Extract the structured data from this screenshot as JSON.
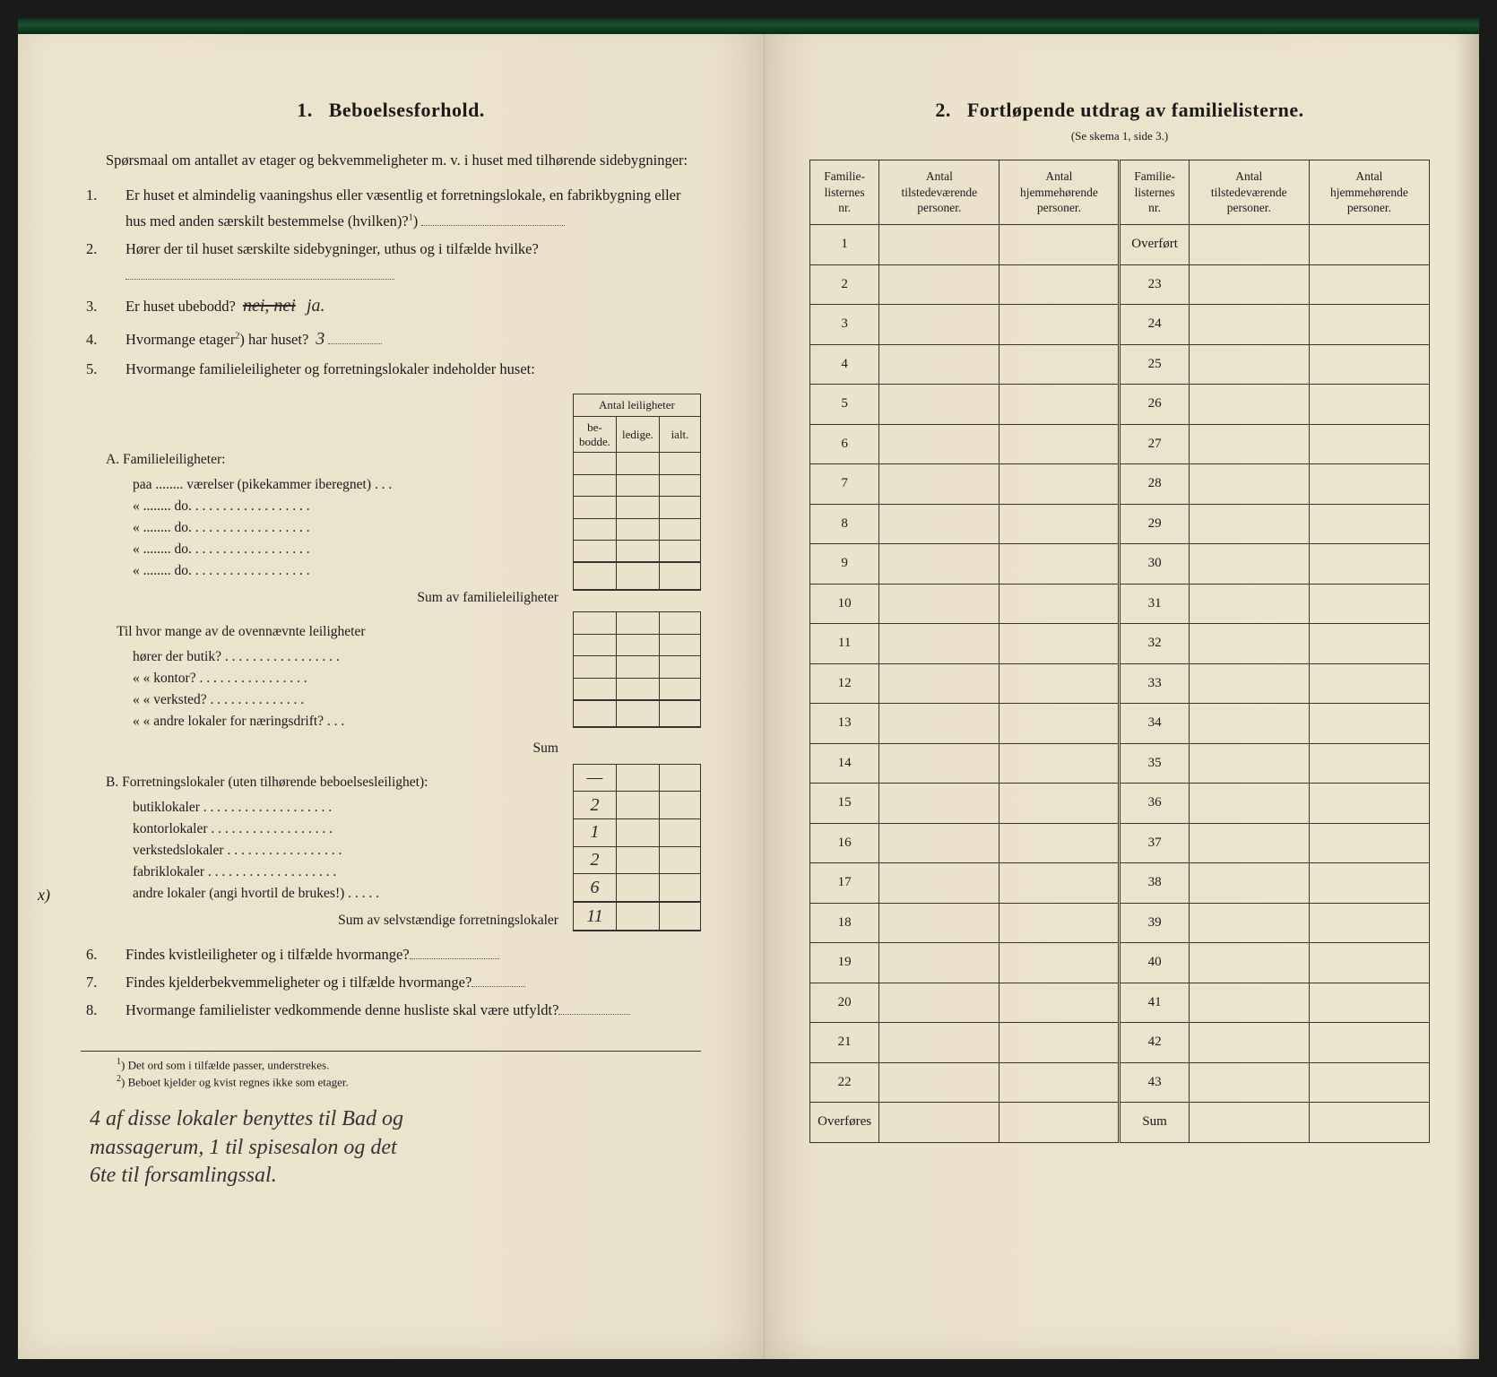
{
  "left": {
    "section_number": "1.",
    "section_title": "Beboelsesforhold.",
    "intro": "Spørsmaal om antallet av etager og bekvemmeligheter m. v. i huset med tilhørende sidebygninger:",
    "q1_num": "1.",
    "q1": "Er huset et almindelig vaaningshus eller væsentlig et forretningslokale, en fabrikbygning eller hus med anden særskilt bestemmelse (hvilken)?",
    "q1_sup": "1",
    "q2_num": "2.",
    "q2": "Hører der til huset særskilte sidebygninger, uthus og i tilfælde hvilke?",
    "q3_num": "3.",
    "q3": "Er huset ubebodd?",
    "q3_hand_struck": "nei, nei",
    "q3_hand": "ja.",
    "q4_num": "4.",
    "q4a": "Hvormange etager",
    "q4_sup": "2",
    "q4b": ") har huset?",
    "q4_hand": "3",
    "q5_num": "5.",
    "q5": "Hvormange familieleiligheter og forretningslokaler indeholder huset:",
    "apt_header_top": "Antal leiligheter",
    "apt_h1": "be-\nbodde.",
    "apt_h2": "ledige.",
    "apt_h3": "ialt.",
    "secA": "A. Familieleiligheter:",
    "secA_l1": "paa ........ værelser (pikekammer iberegnet) . . .",
    "secA_l2": "«   ........   do.   . . . . . . . . . . . . . . . . .",
    "secA_l3": "«   ........   do.   . . . . . . . . . . . . . . . . .",
    "secA_l4": "«   ........   do.   . . . . . . . . . . . . . . . . .",
    "secA_l5": "«   ........   do.   . . . . . . . . . . . . . . . . .",
    "secA_sum": "Sum av familieleiligheter",
    "mid1": "Til hvor mange av de ovennævnte leiligheter",
    "mid2": "hører der butik? . . . . . . . . . . . . . . . . .",
    "mid3": "«    « kontor? . . . . . . . . . . . . . . . .",
    "mid4": "«    « verksted? . . . . . . . . . . . . . .",
    "mid5": "«    « andre lokaler for næringsdrift? . . .",
    "mid_sum": "Sum",
    "secB": "B. Forretningslokaler (uten tilhørende beboelsesleilighet):",
    "secB_l1": "butiklokaler . . . . . . . . . . . . . . . . . . .",
    "secB_l2": "kontorlokaler . . . . . . . . . . . . . . . . . .",
    "secB_l3": "verkstedslokaler . . . . . . . . . . . . . . . . .",
    "secB_l4": "fabriklokaler . . . . . . . . . . . . . . . . . . .",
    "secB_l5": "andre lokaler (angi hvortil de brukes!) . . . . .",
    "secB_margin": "x)",
    "secB_v1": "—",
    "secB_v2": "2",
    "secB_v3": "1",
    "secB_v4": "2",
    "secB_v5": "6",
    "secB_sum_label": "Sum av selvstændige forretningslokaler",
    "secB_sum_val": "11",
    "q6_num": "6.",
    "q6": "Findes kvistleiligheter og i tilfælde hvormange?",
    "q7_num": "7.",
    "q7": "Findes kjelderbekvemmeligheter og i tilfælde hvormange?",
    "q8_num": "8.",
    "q8": "Hvormange familielister vedkommende denne husliste skal være utfyldt?",
    "fn1_sup": "1",
    "fn1": ") Det ord som i tilfælde passer, understrekes.",
    "fn2_sup": "2",
    "fn2": ") Beboet kjelder og kvist regnes ikke som etager.",
    "bottom_hand1": "4 af disse lokaler benyttes til Bad og",
    "bottom_hand2": "massagerum, 1 til spisesalon og det",
    "bottom_hand3": "6te til forsamlingssal."
  },
  "right": {
    "section_number": "2.",
    "section_title": "Fortløpende utdrag av familielisterne.",
    "subtitle": "(Se skema 1, side 3.)",
    "h1": "Familie-\nlisternes\nnr.",
    "h2": "Antal\ntilstedeværende\npersoner.",
    "h3": "Antal\nhjemmehørende\npersoner.",
    "h4": "Familie-\nlisternes\nnr.",
    "h5": "Antal\ntilstedeværende\npersoner.",
    "h6": "Antal\nhjemmehørende\npersoner.",
    "left_rows": [
      "1",
      "2",
      "3",
      "4",
      "5",
      "6",
      "7",
      "8",
      "9",
      "10",
      "11",
      "12",
      "13",
      "14",
      "15",
      "16",
      "17",
      "18",
      "19",
      "20",
      "21",
      "22",
      "Overføres"
    ],
    "right_rows": [
      "Overført",
      "23",
      "24",
      "25",
      "26",
      "27",
      "28",
      "29",
      "30",
      "31",
      "32",
      "33",
      "34",
      "35",
      "36",
      "37",
      "38",
      "39",
      "40",
      "41",
      "42",
      "43",
      "Sum"
    ]
  },
  "colors": {
    "paper": "#ede4ce",
    "ink": "#1a1a1a",
    "border": "#333333"
  }
}
